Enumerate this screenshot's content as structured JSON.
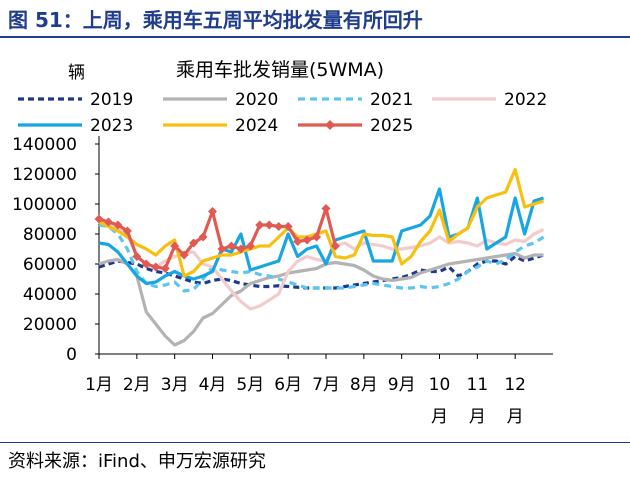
{
  "figure_title": "图 51：上周，乘用车五周平均批发量有所回升",
  "source": "资料来源：iFind、申万宏源研究",
  "chart_data": {
    "type": "line",
    "title": "乘用车批发销量(5WMA)",
    "unit_label": "辆",
    "ylim": [
      0,
      140000
    ],
    "yticks": [
      0,
      20000,
      40000,
      60000,
      80000,
      100000,
      120000,
      140000
    ],
    "ytick_labels": [
      "0",
      "20000",
      "40000",
      "60000",
      "80000",
      "100000",
      "120000",
      "140000"
    ],
    "x_range": [
      1,
      13
    ],
    "xticks": [
      1,
      2,
      3,
      4,
      5,
      6,
      7,
      8,
      9,
      10,
      11,
      12
    ],
    "xtick_labels": [
      "1月",
      "2月",
      "3月",
      "4月",
      "5月",
      "6月",
      "7月",
      "8月",
      "9月",
      "10\n月",
      "11\n月",
      "12\n月"
    ],
    "grid": false,
    "legend_position": "top",
    "series": [
      {
        "name": "2019",
        "color": "#1f3a8c",
        "dash": "6,4",
        "marker": false,
        "x": [
          1.0,
          1.25,
          1.5,
          1.75,
          2.0,
          2.25,
          2.5,
          2.75,
          3.0,
          3.25,
          3.5,
          3.75,
          4.0,
          4.25,
          4.5,
          4.75,
          5.0,
          5.25,
          5.5,
          5.75,
          6.0,
          6.25,
          6.5,
          6.75,
          7.0,
          7.25,
          7.5,
          7.75,
          8.0,
          8.25,
          8.5,
          8.75,
          9.0,
          9.25,
          9.5,
          9.75,
          10.0,
          10.25,
          10.5,
          10.75,
          11.0,
          11.25,
          11.5,
          11.75,
          12.0,
          12.25,
          12.5,
          12.75
        ],
        "values": [
          58000,
          60000,
          62000,
          61000,
          60000,
          57000,
          55000,
          54000,
          52000,
          50000,
          48000,
          47000,
          49000,
          50000,
          49000,
          47000,
          46000,
          45000,
          45000,
          45500,
          45000,
          44500,
          44000,
          44000,
          44000,
          44000,
          45000,
          46000,
          47000,
          48000,
          49000,
          50000,
          51000,
          53000,
          56000,
          55000,
          55000,
          58000,
          52000,
          55000,
          60000,
          62000,
          62000,
          60000,
          65000,
          62000,
          64000,
          66000
        ]
      },
      {
        "name": "2020",
        "color": "#b3b3b3",
        "dash": "",
        "marker": false,
        "x": [
          1.0,
          1.25,
          1.5,
          1.75,
          2.0,
          2.25,
          2.5,
          2.75,
          3.0,
          3.25,
          3.5,
          3.75,
          4.0,
          4.25,
          4.5,
          4.75,
          5.0,
          5.25,
          5.5,
          5.75,
          6.0,
          6.25,
          6.5,
          6.75,
          7.0,
          7.25,
          7.5,
          7.75,
          8.0,
          8.25,
          8.5,
          8.75,
          9.0,
          9.25,
          9.5,
          9.75,
          10.0,
          10.25,
          10.5,
          10.75,
          11.0,
          11.25,
          11.5,
          11.75,
          12.0,
          12.25,
          12.5,
          12.75
        ],
        "values": [
          60000,
          62000,
          63000,
          60000,
          52000,
          28000,
          20000,
          12000,
          6000,
          9000,
          15000,
          24000,
          27000,
          33000,
          39000,
          42000,
          47000,
          49000,
          51000,
          52000,
          54000,
          55000,
          56000,
          57000,
          60000,
          61000,
          60000,
          59000,
          56000,
          52000,
          50000,
          49000,
          50000,
          51000,
          54000,
          56000,
          58000,
          60000,
          61000,
          62000,
          63000,
          64000,
          65000,
          66000,
          67000,
          64000,
          66000,
          66000
        ]
      },
      {
        "name": "2021",
        "color": "#5cc6f0",
        "dash": "7,5",
        "marker": false,
        "x": [
          1.0,
          1.25,
          1.5,
          1.75,
          2.0,
          2.25,
          2.5,
          2.75,
          3.0,
          3.25,
          3.5,
          3.75,
          4.0,
          4.25,
          4.5,
          4.75,
          5.0,
          5.25,
          5.5,
          5.75,
          6.0,
          6.25,
          6.5,
          6.75,
          7.0,
          7.25,
          7.5,
          7.75,
          8.0,
          8.25,
          8.5,
          8.75,
          9.0,
          9.25,
          9.5,
          9.75,
          10.0,
          10.25,
          10.5,
          10.75,
          11.0,
          11.25,
          11.5,
          11.75,
          12.0,
          12.25,
          12.5,
          12.75
        ],
        "values": [
          86000,
          85000,
          80000,
          70000,
          55000,
          47000,
          45000,
          46000,
          48000,
          42000,
          43000,
          50000,
          58000,
          56000,
          55000,
          54000,
          55000,
          53000,
          52000,
          50000,
          48000,
          46000,
          44000,
          44000,
          44000,
          44000,
          44000,
          45000,
          46000,
          47000,
          46000,
          45000,
          44000,
          44000,
          45000,
          44000,
          45000,
          47000,
          50000,
          55000,
          58000,
          62000,
          60000,
          63000,
          68000,
          72000,
          74000,
          78000
        ]
      },
      {
        "name": "2022",
        "color": "#f2cccc",
        "dash": "",
        "marker": false,
        "x": [
          1.0,
          1.25,
          1.5,
          1.75,
          2.0,
          2.25,
          2.5,
          2.75,
          3.0,
          3.25,
          3.5,
          3.75,
          4.0,
          4.25,
          4.5,
          4.75,
          5.0,
          5.25,
          5.5,
          5.75,
          6.0,
          6.25,
          6.5,
          6.75,
          7.0,
          7.25,
          7.5,
          7.75,
          8.0,
          8.25,
          8.5,
          8.75,
          9.0,
          9.25,
          9.5,
          9.75,
          10.0,
          10.25,
          10.5,
          10.75,
          11.0,
          11.25,
          11.5,
          11.75,
          12.0,
          12.25,
          12.5,
          12.75
        ],
        "values": [
          88000,
          86000,
          83000,
          80000,
          65000,
          60000,
          58000,
          62000,
          65000,
          67000,
          68000,
          60000,
          58000,
          50000,
          42000,
          35000,
          30000,
          32000,
          36000,
          40000,
          55000,
          62000,
          65000,
          63000,
          62000,
          72000,
          74000,
          70000,
          74000,
          73000,
          72000,
          70000,
          70000,
          71000,
          72000,
          74000,
          78000,
          74000,
          75000,
          74000,
          72000,
          76000,
          74000,
          73000,
          76000,
          75000,
          80000,
          83000
        ]
      },
      {
        "name": "2023",
        "color": "#18a6e3",
        "dash": "",
        "marker": false,
        "x": [
          1.0,
          1.25,
          1.5,
          1.75,
          2.0,
          2.25,
          2.5,
          2.75,
          3.0,
          3.25,
          3.5,
          3.75,
          4.0,
          4.25,
          4.5,
          4.75,
          5.0,
          5.25,
          5.5,
          5.75,
          6.0,
          6.25,
          6.5,
          6.75,
          7.0,
          7.25,
          7.5,
          7.75,
          8.0,
          8.25,
          8.5,
          8.75,
          9.0,
          9.25,
          9.5,
          9.75,
          10.0,
          10.25,
          10.5,
          10.75,
          11.0,
          11.25,
          11.5,
          11.75,
          12.0,
          12.25,
          12.5,
          12.75
        ],
        "values": [
          74000,
          73000,
          68000,
          60000,
          52000,
          47000,
          48000,
          52000,
          55000,
          52000,
          50000,
          52000,
          55000,
          70000,
          68000,
          80000,
          56000,
          58000,
          60000,
          62000,
          80000,
          65000,
          70000,
          72000,
          60000,
          76000,
          78000,
          80000,
          82000,
          62000,
          62000,
          62000,
          82000,
          84000,
          86000,
          92000,
          110000,
          78000,
          80000,
          84000,
          104000,
          70000,
          74000,
          78000,
          104000,
          80000,
          102000,
          104000
        ]
      },
      {
        "name": "2024",
        "color": "#f7c00f",
        "dash": "",
        "marker": false,
        "x": [
          1.0,
          1.25,
          1.5,
          1.75,
          2.0,
          2.25,
          2.5,
          2.75,
          3.0,
          3.25,
          3.5,
          3.75,
          4.0,
          4.25,
          4.5,
          4.75,
          5.0,
          5.25,
          5.5,
          5.75,
          6.0,
          6.25,
          6.5,
          6.75,
          7.0,
          7.25,
          7.5,
          7.75,
          8.0,
          8.25,
          8.5,
          8.75,
          9.0,
          9.25,
          9.5,
          9.75,
          10.0,
          10.25,
          10.5,
          10.75,
          11.0,
          11.25,
          11.5,
          11.75,
          12.0,
          12.25,
          12.5,
          12.75
        ],
        "values": [
          88000,
          85000,
          82000,
          78000,
          73000,
          70000,
          66000,
          72000,
          76000,
          52000,
          55000,
          62000,
          64000,
          66000,
          66000,
          68000,
          70000,
          72000,
          72000,
          78000,
          84000,
          78000,
          78000,
          80000,
          82000,
          65000,
          64000,
          66000,
          80000,
          79000,
          79000,
          78000,
          60000,
          65000,
          75000,
          82000,
          96000,
          75000,
          80000,
          84000,
          98000,
          104000,
          106000,
          108000,
          123000,
          98000,
          100000,
          102000
        ]
      },
      {
        "name": "2025",
        "color": "#e05a52",
        "dash": "",
        "marker": true,
        "x": [
          1.0,
          1.25,
          1.5,
          1.75,
          2.0,
          2.25,
          2.5,
          2.75,
          3.0,
          3.25,
          3.5,
          3.75,
          4.0,
          4.25,
          4.5,
          4.75,
          5.0,
          5.25,
          5.5,
          5.75,
          6.0,
          6.25,
          6.5,
          6.75,
          7.0,
          7.25
        ],
        "values": [
          90000,
          88000,
          86000,
          82000,
          65000,
          60000,
          58000,
          57000,
          72000,
          66000,
          74000,
          78000,
          95000,
          70000,
          72000,
          70000,
          72000,
          86000,
          86000,
          85000,
          85000,
          75000,
          76000,
          78000,
          97000,
          72000
        ]
      }
    ]
  }
}
